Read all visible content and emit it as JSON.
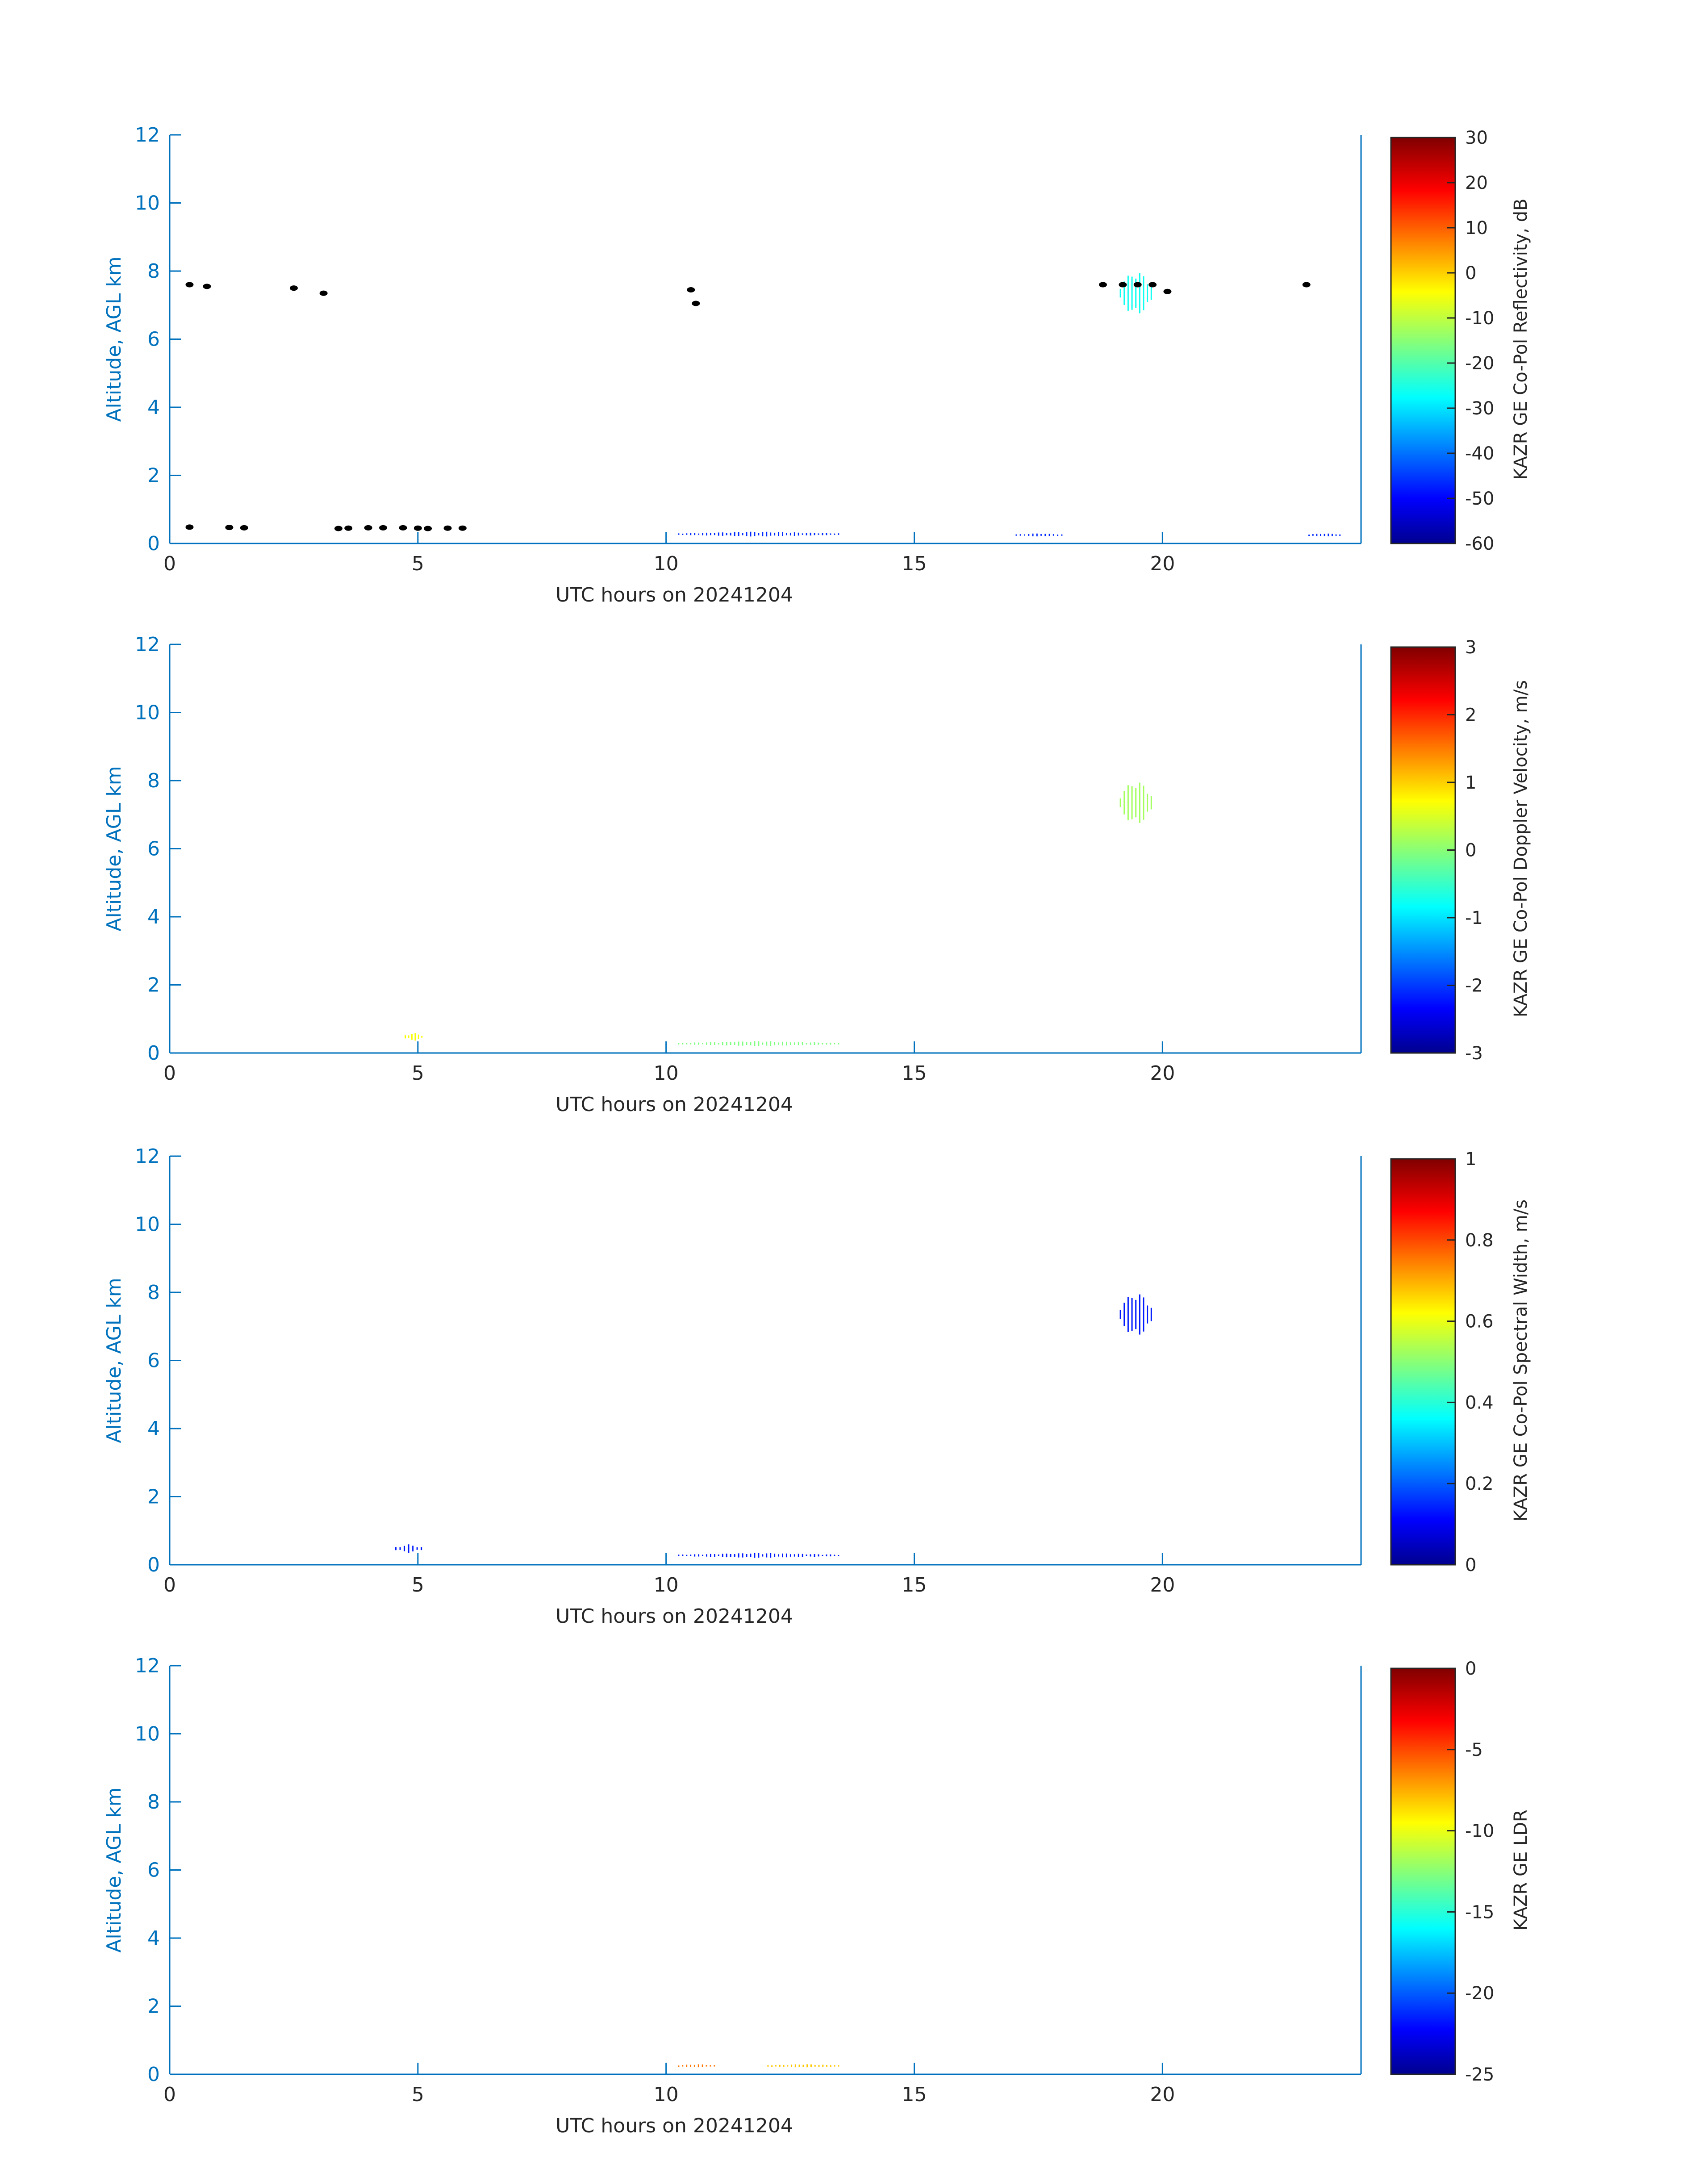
{
  "figure": {
    "axis_color": "#0072bd",
    "text_color": "#262626",
    "background": "#ffffff"
  },
  "chart_data": [
    {
      "type": "heatmap",
      "xlabel": "UTC hours on 20241204",
      "ylabel": "Altitude, AGL km",
      "xlim": [
        0,
        24
      ],
      "ylim": [
        0,
        12
      ],
      "xticks": [
        0,
        5,
        10,
        15,
        20
      ],
      "yticks": [
        0,
        2,
        4,
        6,
        8,
        10,
        12
      ],
      "colorbar": {
        "label": "KAZR GE Co-Pol Reflectivity, dB",
        "range": [
          -60,
          30
        ],
        "ticks": [
          30,
          20,
          10,
          0,
          -10,
          -20,
          -30,
          -40,
          -50,
          -60
        ],
        "colormap": "jet"
      },
      "data_patches": [
        {
          "x": [
            19.1,
            19.8
          ],
          "y": [
            6.6,
            8.1
          ],
          "value": -25
        },
        {
          "x": [
            10.2,
            13.5
          ],
          "y": [
            0.2,
            0.35
          ],
          "value": -45
        },
        {
          "x": [
            17.0,
            18.0
          ],
          "y": [
            0.2,
            0.3
          ],
          "value": -45
        },
        {
          "x": [
            22.9,
            23.6
          ],
          "y": [
            0.2,
            0.3
          ],
          "value": -45
        }
      ],
      "mask_points": [
        {
          "x": 0.4,
          "y": 7.6
        },
        {
          "x": 0.75,
          "y": 7.55
        },
        {
          "x": 2.5,
          "y": 7.5
        },
        {
          "x": 3.1,
          "y": 7.35
        },
        {
          "x": 10.5,
          "y": 7.45
        },
        {
          "x": 10.6,
          "y": 7.05
        },
        {
          "x": 18.8,
          "y": 7.6
        },
        {
          "x": 19.2,
          "y": 7.6
        },
        {
          "x": 19.5,
          "y": 7.6
        },
        {
          "x": 19.8,
          "y": 7.6
        },
        {
          "x": 20.1,
          "y": 7.4
        },
        {
          "x": 22.9,
          "y": 7.6
        },
        {
          "x": 0.4,
          "y": 0.48
        },
        {
          "x": 1.2,
          "y": 0.47
        },
        {
          "x": 1.5,
          "y": 0.46
        },
        {
          "x": 3.4,
          "y": 0.44
        },
        {
          "x": 3.6,
          "y": 0.45
        },
        {
          "x": 4.0,
          "y": 0.46
        },
        {
          "x": 4.3,
          "y": 0.46
        },
        {
          "x": 4.7,
          "y": 0.46
        },
        {
          "x": 5.0,
          "y": 0.45
        },
        {
          "x": 5.2,
          "y": 0.44
        },
        {
          "x": 5.6,
          "y": 0.45
        },
        {
          "x": 5.9,
          "y": 0.45
        }
      ]
    },
    {
      "type": "heatmap",
      "xlabel": "UTC hours on 20241204",
      "ylabel": "Altitude, AGL km",
      "xlim": [
        0,
        24
      ],
      "ylim": [
        0,
        12
      ],
      "xticks": [
        0,
        5,
        10,
        15,
        20
      ],
      "yticks": [
        0,
        2,
        4,
        6,
        8,
        10,
        12
      ],
      "colorbar": {
        "label": "KAZR GE Co-Pol Doppler Velocity, m/s",
        "range": [
          -3,
          3
        ],
        "ticks": [
          3,
          2,
          1,
          0,
          -1,
          -2,
          -3
        ],
        "colormap": "jet"
      },
      "data_patches": [
        {
          "x": [
            19.1,
            19.8
          ],
          "y": [
            6.6,
            8.1
          ],
          "value": 0.2
        },
        {
          "x": [
            4.7,
            5.1
          ],
          "y": [
            0.35,
            0.6
          ],
          "value": 0.7
        },
        {
          "x": [
            10.2,
            13.5
          ],
          "y": [
            0.2,
            0.35
          ],
          "value": 0.0
        }
      ],
      "mask_points": []
    },
    {
      "type": "heatmap",
      "xlabel": "UTC hours on 20241204",
      "ylabel": "Altitude, AGL km",
      "xlim": [
        0,
        24
      ],
      "ylim": [
        0,
        12
      ],
      "xticks": [
        0,
        5,
        10,
        15,
        20
      ],
      "yticks": [
        0,
        2,
        4,
        6,
        8,
        10,
        12
      ],
      "colorbar": {
        "label": "KAZR GE Co-Pol Spectral Width, m/s",
        "range": [
          0,
          1
        ],
        "ticks": [
          1,
          0.8,
          0.6,
          0.4,
          0.2,
          0
        ],
        "colormap": "jet"
      },
      "data_patches": [
        {
          "x": [
            19.1,
            19.8
          ],
          "y": [
            6.6,
            8.1
          ],
          "value": 0.15
        },
        {
          "x": [
            4.5,
            5.1
          ],
          "y": [
            0.35,
            0.6
          ],
          "value": 0.15
        },
        {
          "x": [
            10.2,
            13.5
          ],
          "y": [
            0.2,
            0.35
          ],
          "value": 0.15
        }
      ],
      "mask_points": []
    },
    {
      "type": "heatmap",
      "xlabel": "UTC hours on 20241204",
      "ylabel": "Altitude, AGL km",
      "xlim": [
        0,
        24
      ],
      "ylim": [
        0,
        12
      ],
      "xticks": [
        0,
        5,
        10,
        15,
        20
      ],
      "yticks": [
        0,
        2,
        4,
        6,
        8,
        10,
        12
      ],
      "colorbar": {
        "label": "KAZR GE LDR",
        "range": [
          -25,
          0
        ],
        "ticks": [
          0,
          -5,
          -10,
          -15,
          -20,
          -25
        ],
        "colormap": "jet"
      },
      "data_patches": [
        {
          "x": [
            10.2,
            11.0
          ],
          "y": [
            0.2,
            0.3
          ],
          "value": -6
        },
        {
          "x": [
            12.0,
            13.5
          ],
          "y": [
            0.2,
            0.3
          ],
          "value": -8
        }
      ],
      "mask_points": []
    }
  ]
}
